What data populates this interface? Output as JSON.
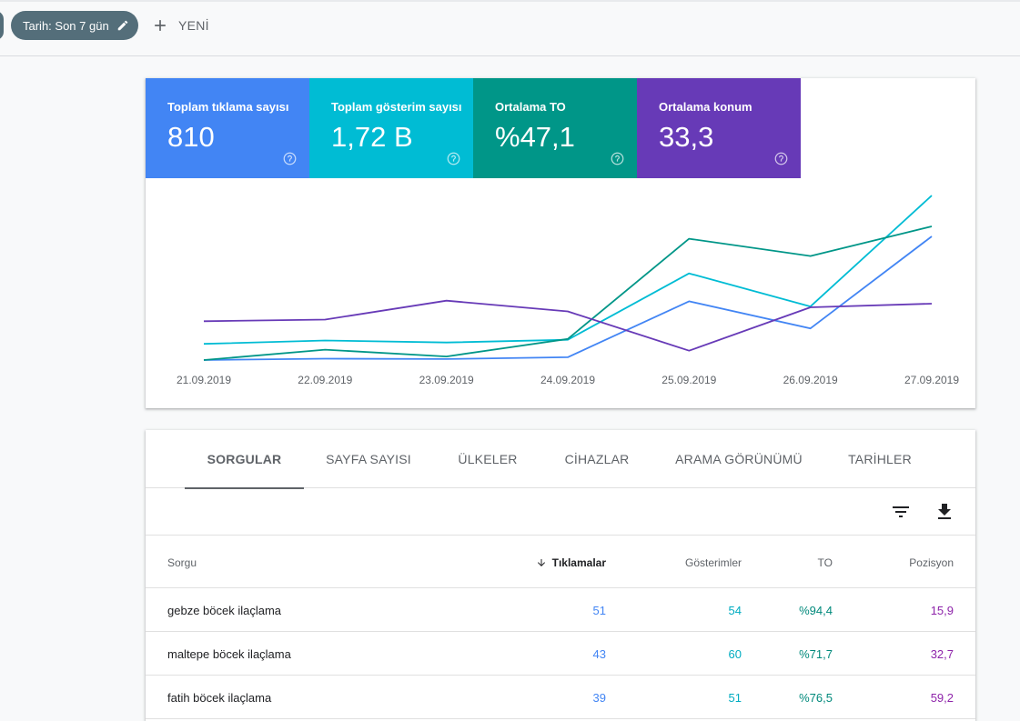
{
  "filters": {
    "date_chip": "Tarih: Son 7 gün",
    "new_label": "YENİ"
  },
  "metrics": [
    {
      "label": "Toplam tıklama sayısı",
      "value": "810",
      "color": "#4285f4"
    },
    {
      "label": "Toplam gösterim sayısı",
      "value": "1,72 B",
      "color": "#00bcd4"
    },
    {
      "label": "Ortalama TO",
      "value": "%47,1",
      "color": "#009688"
    },
    {
      "label": "Ortalama konum",
      "value": "33,3",
      "color": "#673ab7"
    }
  ],
  "chart_data": {
    "type": "line",
    "categories": [
      "21.09.2019",
      "22.09.2019",
      "23.09.2019",
      "24.09.2019",
      "25.09.2019",
      "26.09.2019",
      "27.09.2019"
    ],
    "series": [
      {
        "name": "Toplam tıklama sayısı",
        "color": "#4285f4",
        "values": [
          0.0,
          0.8,
          0.6,
          1.7,
          35.1,
          18.9,
          73.9
        ]
      },
      {
        "name": "Toplam gösterim sayısı",
        "color": "#00bcd4",
        "values": [
          9.7,
          11.7,
          10.5,
          12.1,
          51.8,
          32.0,
          98.3
        ]
      },
      {
        "name": "Ortalama TO",
        "color": "#009688",
        "values": [
          0.0,
          6.2,
          2.1,
          12.6,
          72.5,
          62.2,
          79.9
        ]
      },
      {
        "name": "Ortalama konum",
        "color": "#673ab7",
        "values": [
          23.2,
          24.2,
          35.5,
          29.1,
          5.6,
          31.5,
          33.7
        ]
      }
    ],
    "ylim": [
      0,
      100
    ],
    "grid": false,
    "legend": "none"
  },
  "tabs": [
    {
      "label": "SORGULAR",
      "active": true
    },
    {
      "label": "SAYFA SAYISI",
      "active": false
    },
    {
      "label": "ÜLKELER",
      "active": false
    },
    {
      "label": "CİHAZLAR",
      "active": false
    },
    {
      "label": "ARAMA GÖRÜNÜMÜ",
      "active": false
    },
    {
      "label": "TARİHLER",
      "active": false
    }
  ],
  "toolbar": {
    "filter_icon": "filter-icon",
    "download_icon": "download-icon"
  },
  "table": {
    "columns": {
      "query": "Sorgu",
      "clicks": "Tıklamalar",
      "impressions": "Gösterimler",
      "ctr": "TO",
      "position": "Pozisyon"
    },
    "rows": [
      {
        "query": "gebze böcek ilaçlama",
        "clicks": "51",
        "impressions": "54",
        "ctr": "%94,4",
        "position": "15,9"
      },
      {
        "query": "maltepe böcek ilaçlama",
        "clicks": "43",
        "impressions": "60",
        "ctr": "%71,7",
        "position": "32,7"
      },
      {
        "query": "fatih böcek ilaçlama",
        "clicks": "39",
        "impressions": "51",
        "ctr": "%76,5",
        "position": "59,2"
      }
    ]
  }
}
